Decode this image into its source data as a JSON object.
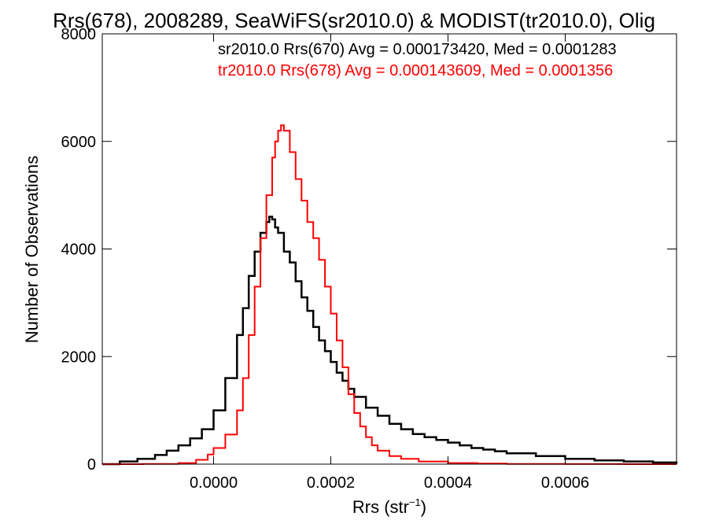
{
  "chart_data": {
    "type": "line",
    "title": "Rrs(678), 2008289, SeaWiFS(sr2010.0) & MODIST(tr2010.0), Olig",
    "xlabel": "Rrs (str",
    "xlabel_sup": "−1",
    "xlabel_close": ")",
    "ylabel": "Number of Observations",
    "xlim": [
      -0.00019,
      0.00079
    ],
    "ylim": [
      0,
      8000
    ],
    "xticks": [
      0.0,
      0.0002,
      0.0004,
      0.0006
    ],
    "xtick_labels": [
      "0.0000",
      "0.0002",
      "0.0004",
      "0.0006"
    ],
    "yticks": [
      0,
      2000,
      4000,
      6000,
      8000
    ],
    "ytick_labels": [
      "0",
      "2000",
      "4000",
      "6000",
      "8000"
    ],
    "grid": false,
    "legend_position": "top-right",
    "series": [
      {
        "name": "sr2010.0 Rrs(670) Avg = 0.000173420, Med = 0.0001283",
        "color": "#000000",
        "x": [
          -0.00019,
          -0.00016,
          -0.00013,
          -0.0001,
          -8e-05,
          -6e-05,
          -4e-05,
          -2e-05,
          0.0,
          2e-05,
          4e-05,
          5e-05,
          6e-05,
          7e-05,
          8e-05,
          9e-05,
          9.5e-05,
          0.0001,
          0.000105,
          0.00011,
          0.00012,
          0.00013,
          0.00014,
          0.00015,
          0.00016,
          0.00017,
          0.00018,
          0.00019,
          0.0002,
          0.00021,
          0.00022,
          0.00023,
          0.00024,
          0.00026,
          0.00028,
          0.0003,
          0.00032,
          0.00034,
          0.00036,
          0.00038,
          0.0004,
          0.00042,
          0.00044,
          0.00046,
          0.00048,
          0.0005,
          0.00055,
          0.0006,
          0.00065,
          0.0007,
          0.00075,
          0.00079
        ],
        "y": [
          0,
          50,
          100,
          170,
          250,
          350,
          480,
          650,
          1000,
          1600,
          2400,
          2900,
          3500,
          3950,
          4300,
          4500,
          4600,
          4550,
          4400,
          4300,
          3950,
          3750,
          3400,
          3100,
          2850,
          2550,
          2300,
          2100,
          1900,
          1700,
          1550,
          1400,
          1250,
          1050,
          900,
          750,
          650,
          560,
          500,
          450,
          400,
          350,
          300,
          270,
          240,
          200,
          150,
          100,
          70,
          50,
          30,
          10
        ]
      },
      {
        "name": "tr2010.0 Rrs(678) Avg = 0.000143609, Med = 0.0001356",
        "color": "#ff0000",
        "x": [
          -0.00019,
          -0.00012,
          -6e-05,
          -3e-05,
          -1e-05,
          0.0,
          2e-05,
          4e-05,
          5e-05,
          6e-05,
          7e-05,
          8e-05,
          9e-05,
          0.0001,
          0.000105,
          0.00011,
          0.000115,
          0.00012,
          0.00013,
          0.00014,
          0.00015,
          0.00016,
          0.00017,
          0.00018,
          0.00019,
          0.0002,
          0.00021,
          0.00022,
          0.00023,
          0.00024,
          0.00025,
          0.00026,
          0.00027,
          0.00028,
          0.0003,
          0.00032,
          0.00035,
          0.0004,
          0.00045,
          0.0005,
          0.0006,
          0.0007,
          0.00079
        ],
        "y": [
          0,
          5,
          20,
          80,
          180,
          300,
          550,
          1000,
          1600,
          2400,
          3300,
          4200,
          5000,
          5700,
          6000,
          6200,
          6300,
          6200,
          5800,
          5300,
          4900,
          4500,
          4200,
          3800,
          3300,
          2800,
          2300,
          1800,
          1300,
          950,
          700,
          500,
          350,
          250,
          150,
          100,
          50,
          20,
          10,
          5,
          2,
          0,
          0
        ]
      }
    ]
  }
}
